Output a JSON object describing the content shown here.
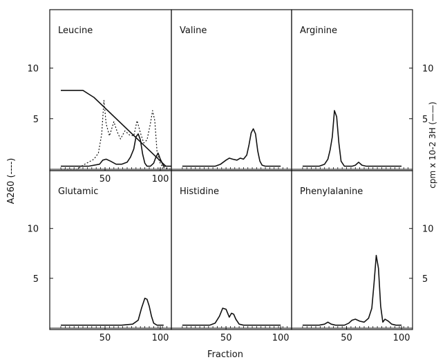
{
  "figure": {
    "xlabel": "Fraction",
    "ylabel_left": "A260 (----)",
    "ylabel_right": "cpm x 10-2 3H (——)"
  },
  "chart_data": [
    {
      "type": "line",
      "title": "Leucine",
      "xlim": [
        0,
        110
      ],
      "ylim": [
        0,
        14
      ],
      "xticks": [
        "50",
        "100"
      ],
      "yticks_left": [
        "5",
        "10"
      ],
      "series": [
        {
          "style": "dotted",
          "x": [
            10,
            25,
            30,
            35,
            40,
            44,
            47,
            49,
            51,
            54,
            58,
            61,
            64,
            68,
            72,
            76,
            79,
            82,
            85,
            88,
            91,
            93,
            95,
            97,
            99,
            101,
            104,
            110
          ],
          "y": [
            0,
            0,
            0.4,
            0.7,
            1.0,
            1.6,
            3.5,
            6.8,
            4.5,
            3.3,
            4.7,
            3.7,
            3.0,
            3.8,
            3.4,
            3.3,
            4.8,
            3.6,
            2.6,
            2.9,
            4.5,
            5.8,
            4.8,
            1.8,
            0.8,
            0.4,
            0.1,
            0
          ]
        },
        {
          "style": "solid",
          "x": [
            10,
            35,
            45,
            48,
            51,
            55,
            60,
            65,
            70,
            73,
            76,
            78,
            80,
            82,
            84,
            86,
            88,
            91,
            94,
            96,
            98,
            100,
            103,
            110
          ],
          "y": [
            0.3,
            0.3,
            0.5,
            0.9,
            1.0,
            0.8,
            0.5,
            0.5,
            0.7,
            1.2,
            2.0,
            3.2,
            3.5,
            2.9,
            1.5,
            0.6,
            0.3,
            0.3,
            0.6,
            1.2,
            1.6,
            1.0,
            0.3,
            0.3
          ]
        },
        {
          "style": "gradient",
          "x": [
            10,
            30,
            40,
            105
          ],
          "y": [
            7.8,
            7.8,
            7.1,
            0.3
          ]
        }
      ]
    },
    {
      "type": "line",
      "title": "Valine",
      "xlim": [
        0,
        110
      ],
      "ylim": [
        0,
        14
      ],
      "xticks": [],
      "yticks_left": [],
      "series": [
        {
          "style": "solid",
          "x": [
            10,
            40,
            45,
            50,
            53,
            56,
            60,
            63,
            66,
            69,
            71,
            73,
            75,
            77,
            79,
            81,
            83,
            86,
            90,
            100
          ],
          "y": [
            0.3,
            0.3,
            0.5,
            0.9,
            1.1,
            1.0,
            0.9,
            1.1,
            1.0,
            1.4,
            2.4,
            3.6,
            4.0,
            3.5,
            1.8,
            0.8,
            0.4,
            0.3,
            0.3,
            0.3
          ]
        }
      ]
    },
    {
      "type": "line",
      "title": "Arginine",
      "xlim": [
        0,
        110
      ],
      "ylim": [
        0,
        14
      ],
      "xticks": [],
      "yticks_right": [
        "5",
        "10"
      ],
      "series": [
        {
          "style": "solid",
          "x": [
            10,
            25,
            30,
            33,
            35,
            37,
            39,
            41,
            43,
            45,
            48,
            55,
            58,
            61,
            64,
            68,
            100
          ],
          "y": [
            0.3,
            0.3,
            0.5,
            1.0,
            1.9,
            3.2,
            5.8,
            5.2,
            2.6,
            0.8,
            0.3,
            0.3,
            0.4,
            0.7,
            0.4,
            0.3,
            0.3
          ]
        }
      ]
    },
    {
      "type": "line",
      "title": "Glutamic",
      "xlim": [
        0,
        110
      ],
      "ylim": [
        0,
        14
      ],
      "xticks": [
        "50",
        "100"
      ],
      "yticks_left": [
        "5",
        "10"
      ],
      "series": [
        {
          "style": "solid",
          "x": [
            10,
            65,
            75,
            80,
            83,
            86,
            88,
            90,
            92,
            94,
            97,
            103
          ],
          "y": [
            0.3,
            0.3,
            0.4,
            0.8,
            2.0,
            3.0,
            2.9,
            2.2,
            1.2,
            0.5,
            0.3,
            0.3
          ]
        }
      ]
    },
    {
      "type": "line",
      "title": "Histidine",
      "xlim": [
        0,
        110
      ],
      "ylim": [
        0,
        14
      ],
      "xticks": [
        "50",
        "100"
      ],
      "yticks_left": [],
      "series": [
        {
          "style": "solid",
          "x": [
            10,
            35,
            40,
            44,
            47,
            50,
            53,
            55,
            57,
            59,
            62,
            66,
            70,
            100
          ],
          "y": [
            0.3,
            0.3,
            0.5,
            1.2,
            2.0,
            1.9,
            1.1,
            1.5,
            1.4,
            0.9,
            0.4,
            0.3,
            0.3,
            0.3
          ]
        }
      ]
    },
    {
      "type": "line",
      "title": "Phenylalanine",
      "xlim": [
        0,
        110
      ],
      "ylim": [
        0,
        14
      ],
      "xticks": [
        "50",
        "100"
      ],
      "yticks_right": [
        "5",
        "10"
      ],
      "series": [
        {
          "style": "solid",
          "x": [
            10,
            25,
            30,
            33,
            36,
            40,
            48,
            52,
            55,
            58,
            62,
            66,
            70,
            73,
            75,
            77,
            79,
            81,
            83,
            85,
            88,
            91,
            95,
            100
          ],
          "y": [
            0.3,
            0.3,
            0.4,
            0.6,
            0.4,
            0.3,
            0.3,
            0.5,
            0.8,
            0.9,
            0.7,
            0.6,
            1.0,
            2.0,
            4.5,
            7.3,
            6.0,
            2.2,
            0.6,
            0.9,
            0.7,
            0.4,
            0.3,
            0.3
          ]
        }
      ]
    }
  ]
}
